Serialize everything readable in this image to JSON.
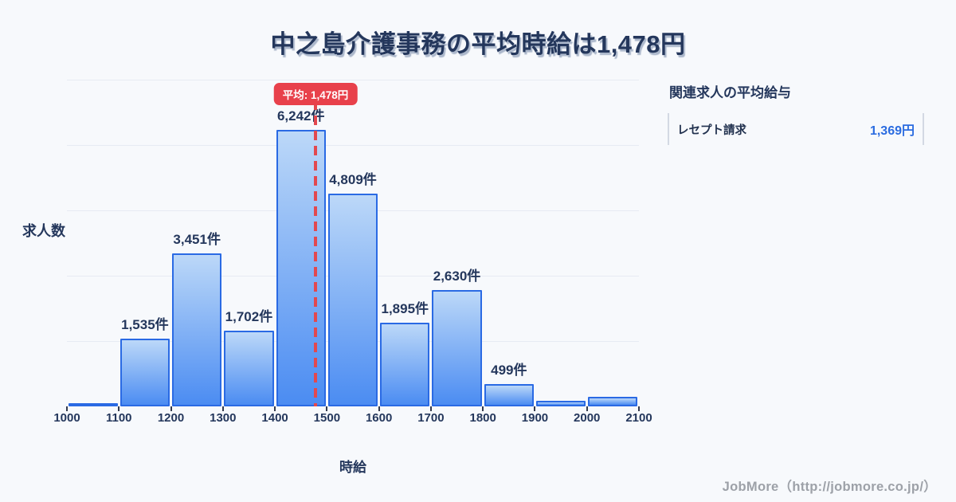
{
  "page": {
    "title": "中之島介護事務の平均時給は1,478円",
    "footer": "JobMore（http://jobmore.co.jp/）"
  },
  "chart_data": {
    "type": "bar",
    "title": "中之島介護事務の平均時給は1,478円",
    "xlabel": "時給",
    "ylabel": "求人数",
    "bin_edges": [
      1000,
      1100,
      1200,
      1300,
      1400,
      1500,
      1600,
      1700,
      1800,
      1900,
      2000,
      2100
    ],
    "x_tick_labels": [
      "1000",
      "1100",
      "1200",
      "1300",
      "1400",
      "1500",
      "1600",
      "1700",
      "1800",
      "1900",
      "2000",
      "2100"
    ],
    "categories": [
      "1000-1100",
      "1100-1200",
      "1200-1300",
      "1300-1400",
      "1400-1500",
      "1500-1600",
      "1600-1700",
      "1700-1800",
      "1800-1900",
      "1900-2000",
      "2000-2100"
    ],
    "values": [
      50,
      1535,
      3451,
      1702,
      6242,
      4809,
      1895,
      2630,
      499,
      120,
      210
    ],
    "bar_labels": [
      "",
      "1,535件",
      "3,451件",
      "1,702件",
      "6,242件",
      "4,809件",
      "1,895件",
      "2,630件",
      "499件",
      "",
      ""
    ],
    "ylim": [
      0,
      7375
    ],
    "grid": true,
    "gridline_count": 5,
    "legend": false,
    "average_line": {
      "x": 1478,
      "label": "平均: 1,478円"
    }
  },
  "related_panel": {
    "heading": "関連求人の平均給与",
    "items": [
      {
        "label": "レセプト請求",
        "value": "1,369円"
      }
    ]
  },
  "colors": {
    "background": "#f7f9fc",
    "title_navy": "#24375c",
    "bar_fill_top": "#bcd8f8",
    "bar_fill_bottom": "#4b8cf2",
    "bar_border": "#2a6ae4",
    "average_red": "#e8414b",
    "average_line_red": "#e2484f",
    "value_blue": "#2b6ce0",
    "grid_line": "#e7ebf3",
    "footer_gray": "#9da1a8"
  }
}
